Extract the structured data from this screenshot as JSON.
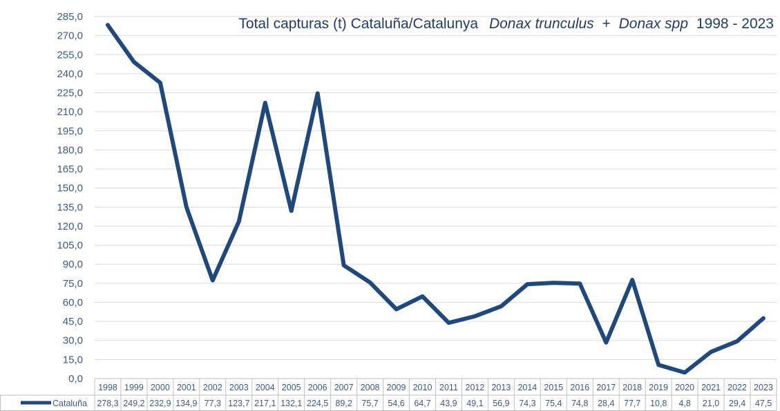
{
  "chart_data": {
    "type": "line",
    "title": "Total capturas (t) Cataluña/Catalunya",
    "title_species": "Donax trunculus",
    "title_plus": "+",
    "title_genus": "Donax spp",
    "title_period": "1998 - 2023",
    "x": [
      "1998",
      "1999",
      "2000",
      "2001",
      "2002",
      "2003",
      "2004",
      "2005",
      "2006",
      "2007",
      "2008",
      "2009",
      "2010",
      "2011",
      "2012",
      "2013",
      "2014",
      "2015",
      "2016",
      "2017",
      "2018",
      "2019",
      "2020",
      "2021",
      "2022",
      "2023"
    ],
    "series": [
      {
        "name": "Cataluña",
        "values": [
          278.3,
          249.2,
          232.9,
          134.9,
          77.3,
          123.7,
          217.1,
          132.1,
          224.5,
          89.2,
          75.7,
          54.6,
          64.7,
          43.9,
          49.1,
          56.9,
          74.3,
          75.4,
          74.8,
          28.4,
          77.7,
          10.8,
          4.8,
          21.0,
          29.4,
          47.5
        ],
        "labels": [
          "278,3",
          "249,2",
          "232,9",
          "134,9",
          "77,3",
          "123,7",
          "217,1",
          "132,1",
          "224,5",
          "89,2",
          "75,7",
          "54,6",
          "64,7",
          "43,9",
          "49,1",
          "56,9",
          "74,3",
          "75,4",
          "74,8",
          "28,4",
          "77,7",
          "10,8",
          "4,8",
          "21,0",
          "29,4",
          "47,5"
        ],
        "color": "#1f497d"
      }
    ],
    "ylim": [
      0,
      285
    ],
    "yticks": [
      "0,0",
      "15,0",
      "30,0",
      "45,0",
      "60,0",
      "75,0",
      "90,0",
      "105,0",
      "120,0",
      "135,0",
      "150,0",
      "165,0",
      "180,0",
      "195,0",
      "210,0",
      "225,0",
      "240,0",
      "255,0",
      "270,0",
      "285,0"
    ],
    "grid": true,
    "legend": "data-table",
    "colors": {
      "line": "#1f497d",
      "grid": "#d9d9d9",
      "text": "#3a5a84",
      "title": "#1f3c6b"
    }
  }
}
